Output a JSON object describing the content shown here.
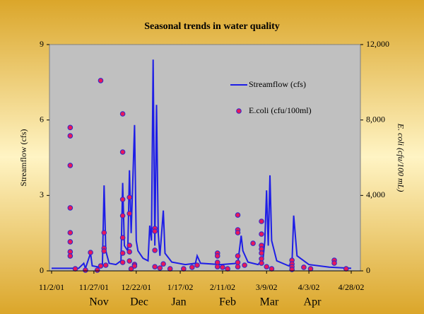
{
  "chart_data": {
    "type": "line_scatter",
    "title": "Seasonal trends in water quality",
    "ylabel": "Streamflow (cfs)",
    "y2label": "E. coli (cfu/100 mL)",
    "xlim": [
      "2001-11-02",
      "2002-04-28"
    ],
    "xticks": [
      {
        "value": "2001-11-02",
        "label": "11/2/01"
      },
      {
        "value": "2001-11-27",
        "label": "11/27/01"
      },
      {
        "value": "2001-12-22",
        "label": "12/22/01"
      },
      {
        "value": "2002-01-17",
        "label": "1/17/02"
      },
      {
        "value": "2002-02-11",
        "label": "2/11/02"
      },
      {
        "value": "2002-03-09",
        "label": "3/9/02"
      },
      {
        "value": "2002-04-03",
        "label": "4/3/02"
      },
      {
        "value": "2002-04-28",
        "label": "4/28/02"
      }
    ],
    "month_labels": [
      "Nov",
      "Dec",
      "Jan",
      "Feb",
      "Mar",
      "Apr"
    ],
    "ylim": [
      0,
      9
    ],
    "yticks": [
      0,
      3,
      6,
      9
    ],
    "y2lim": [
      0,
      12000
    ],
    "y2ticks": [
      0,
      {
        "value": 4000,
        "label": "4,000"
      },
      {
        "value": 8000,
        "label": "8,000"
      },
      {
        "value": 12000,
        "label": "12,000"
      }
    ],
    "series": [
      {
        "name": "Streamflow (cfs)",
        "color": "#1e1ee6",
        "kind": "line",
        "x": [
          "2001-11-02",
          "2001-11-18",
          "2001-11-21",
          "2001-11-22",
          "2001-11-25",
          "2001-11-26",
          "2001-11-30",
          "2001-12-02",
          "2001-12-03",
          "2001-12-04",
          "2001-12-06",
          "2001-12-10",
          "2001-12-13",
          "2001-12-14",
          "2001-12-15",
          "2001-12-17",
          "2001-12-18",
          "2001-12-19",
          "2001-12-21",
          "2001-12-22",
          "2001-12-23",
          "2001-12-26",
          "2001-12-29",
          "2001-12-30",
          "2001-12-31",
          "2002-01-01",
          "2002-01-02",
          "2002-01-03",
          "2002-01-04",
          "2002-01-05",
          "2002-01-07",
          "2002-01-08",
          "2002-01-12",
          "2002-01-20",
          "2002-01-26",
          "2002-01-27",
          "2002-01-29",
          "2002-02-10",
          "2002-02-20",
          "2002-02-22",
          "2002-02-23",
          "2002-02-26",
          "2002-03-04",
          "2002-03-07",
          "2002-03-08",
          "2002-03-09",
          "2002-03-10",
          "2002-03-11",
          "2002-03-12",
          "2002-03-15",
          "2002-03-22",
          "2002-03-24",
          "2002-03-25",
          "2002-03-27",
          "2002-04-03",
          "2002-04-15",
          "2002-04-28"
        ],
        "values": [
          0.1,
          0.1,
          0.3,
          0.1,
          0.7,
          0.2,
          0.15,
          0.2,
          3.4,
          0.8,
          0.3,
          0.25,
          0.4,
          3.5,
          1.0,
          0.8,
          4.0,
          1.5,
          5.8,
          1.2,
          0.8,
          0.5,
          0.4,
          1.8,
          1.2,
          8.4,
          1.0,
          6.6,
          1.5,
          0.6,
          2.4,
          0.7,
          0.35,
          0.25,
          0.3,
          0.6,
          0.3,
          0.25,
          0.3,
          1.4,
          0.8,
          0.35,
          0.25,
          0.5,
          1.2,
          3.2,
          1.0,
          3.8,
          1.2,
          0.4,
          0.2,
          0.3,
          2.2,
          0.6,
          0.25,
          0.15,
          0.1
        ]
      },
      {
        "name": "E.coli (cfu/100ml)",
        "color": "#e8175a",
        "kind": "scatter",
        "axis": "y2",
        "x": [
          "2001-11-13",
          "2001-11-13",
          "2001-11-13",
          "2001-11-13",
          "2001-11-13",
          "2001-11-13",
          "2001-11-13",
          "2001-11-13",
          "2001-11-16",
          "2001-11-22",
          "2001-11-25",
          "2001-11-29",
          "2001-12-01",
          "2001-12-01",
          "2001-12-03",
          "2001-12-03",
          "2001-12-03",
          "2001-12-04",
          "2001-12-14",
          "2001-12-14",
          "2001-12-14",
          "2001-12-14",
          "2001-12-14",
          "2001-12-14",
          "2001-12-14",
          "2001-12-18",
          "2001-12-18",
          "2001-12-18",
          "2001-12-18",
          "2001-12-18",
          "2001-12-19",
          "2001-12-21",
          "2001-12-21",
          "2002-01-02",
          "2002-01-02",
          "2002-01-02",
          "2002-01-02",
          "2002-01-05",
          "2002-01-07",
          "2002-01-11",
          "2002-01-19",
          "2002-01-24",
          "2002-01-27",
          "2002-02-08",
          "2002-02-08",
          "2002-02-08",
          "2002-02-08",
          "2002-02-11",
          "2002-02-14",
          "2002-02-20",
          "2002-02-20",
          "2002-02-20",
          "2002-02-20",
          "2002-02-20",
          "2002-02-20",
          "2002-02-24",
          "2002-03-01",
          "2002-03-06",
          "2002-03-06",
          "2002-03-06",
          "2002-03-06",
          "2002-03-06",
          "2002-03-06",
          "2002-03-06",
          "2002-03-09",
          "2002-03-12",
          "2002-03-24",
          "2002-03-24",
          "2002-03-24",
          "2002-03-24",
          "2002-03-31",
          "2002-04-04",
          "2002-04-18",
          "2002-04-18",
          "2002-04-25"
        ],
        "values": [
          7600,
          7160,
          5590,
          3340,
          2025,
          1540,
          1010,
          790,
          110,
          40,
          975,
          40,
          260,
          10090,
          2025,
          1200,
          1050,
          300,
          8325,
          6300,
          3790,
          2925,
          1760,
          940,
          450,
          3900,
          3040,
          1350,
          1010,
          525,
          110,
          340,
          260,
          2250,
          2100,
          1090,
          220,
          150,
          370,
          110,
          110,
          190,
          300,
          940,
          790,
          450,
          220,
          190,
          110,
          2960,
          2175,
          2025,
          790,
          450,
          220,
          300,
          1460,
          2625,
          1950,
          1350,
          1160,
          940,
          640,
          410,
          220,
          110,
          560,
          370,
          220,
          75,
          190,
          110,
          560,
          410,
          110
        ]
      }
    ]
  }
}
